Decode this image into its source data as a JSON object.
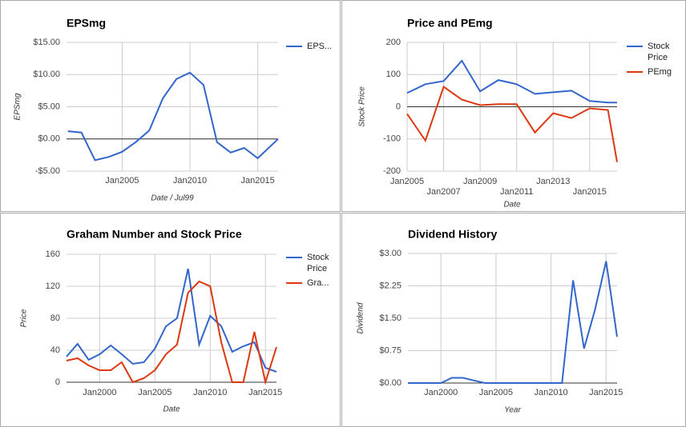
{
  "chart_data": [
    {
      "type": "line",
      "title": "EPSmg",
      "xlabel": "Date / Jul99",
      "ylabel": "EPSmg",
      "x": [
        2001,
        2002,
        2003,
        2004,
        2005,
        2006,
        2007,
        2008,
        2009,
        2010,
        2011,
        2012,
        2013,
        2014,
        2015,
        2016.5
      ],
      "series": [
        {
          "name": "EPS...",
          "color": "#3366cc",
          "values": [
            1.2,
            1.0,
            -3.3,
            -2.8,
            -2.0,
            -0.5,
            1.3,
            6.3,
            9.3,
            10.3,
            8.4,
            -0.5,
            -2.1,
            -1.4,
            -3.0,
            0
          ]
        }
      ],
      "xlim": [
        2000.9,
        2016.5
      ],
      "xticks": [
        {
          "value": 2005,
          "label": "Jan2005"
        },
        {
          "value": 2010,
          "label": "Jan2010"
        },
        {
          "value": 2015,
          "label": "Jan2015"
        }
      ],
      "ylim": [
        -5,
        15
      ],
      "yticks": [
        {
          "value": -5,
          "label": "-$5.00"
        },
        {
          "value": 0,
          "label": "$0.00"
        },
        {
          "value": 5,
          "label": "$5.00"
        },
        {
          "value": 10,
          "label": "$10.00"
        },
        {
          "value": 15,
          "label": "$15.00"
        }
      ],
      "grid": true,
      "legend": "right"
    },
    {
      "type": "line",
      "title": "Price and PEmg",
      "xlabel": "Date",
      "ylabel": "Stock Price",
      "x": [
        2005,
        2006,
        2007,
        2008,
        2009,
        2010,
        2011,
        2012,
        2013,
        2014,
        2015,
        2016,
        2016.5
      ],
      "series": [
        {
          "name": "Stock Price",
          "color": "#3366cc",
          "values": [
            43,
            70,
            80,
            143,
            48,
            83,
            70,
            40,
            45,
            50,
            18,
            13,
            13
          ]
        },
        {
          "name": "PEmg",
          "color": "#dc3912",
          "values": [
            -22,
            -105,
            62,
            22,
            5,
            8,
            8,
            -80,
            -20,
            -35,
            -5,
            -10,
            -172
          ]
        }
      ],
      "xlim": [
        2005,
        2016.5
      ],
      "xticks": [
        {
          "value": 2005,
          "label": "Jan2005"
        },
        {
          "value": 2007,
          "label": "Jan2007"
        },
        {
          "value": 2009,
          "label": "Jan2009"
        },
        {
          "value": 2011,
          "label": "Jan2011"
        },
        {
          "value": 2013,
          "label": "Jan2013"
        },
        {
          "value": 2015,
          "label": "Jan2015"
        }
      ],
      "ylim": [
        -200,
        200
      ],
      "yticks": [
        -200,
        -100,
        0,
        100,
        200
      ],
      "grid": true,
      "legend": "right"
    },
    {
      "type": "line",
      "title": "Graham Number and Stock Price",
      "xlabel": "Date",
      "ylabel": "Price",
      "x": [
        1997,
        1998,
        1999,
        2000,
        2001,
        2002,
        2003,
        2004,
        2005,
        2006,
        2007,
        2008,
        2009,
        2010,
        2011,
        2012,
        2013,
        2014,
        2015,
        2016
      ],
      "series": [
        {
          "name": "Stock Price",
          "color": "#3366cc",
          "values": [
            32,
            48,
            28,
            35,
            46,
            35,
            23,
            25,
            42,
            70,
            80,
            142,
            47,
            83,
            70,
            38,
            45,
            50,
            18,
            13
          ]
        },
        {
          "name": "Gra...",
          "color": "#dc3912",
          "values": [
            27,
            30,
            21,
            15,
            15,
            25,
            0,
            5,
            15,
            35,
            47,
            112,
            126,
            120,
            50,
            0,
            0,
            63,
            0,
            44
          ]
        }
      ],
      "xlim": [
        1997,
        2016
      ],
      "xticks": [
        {
          "value": 2000,
          "label": "Jan2000"
        },
        {
          "value": 2005,
          "label": "Jan2005"
        },
        {
          "value": 2010,
          "label": "Jan2010"
        },
        {
          "value": 2015,
          "label": "Jan2015"
        }
      ],
      "ylim": [
        0,
        160
      ],
      "yticks": [
        0,
        40,
        80,
        120,
        160
      ],
      "grid": true,
      "legend": "right"
    },
    {
      "type": "line",
      "title": "Dividend History",
      "xlabel": "Year",
      "ylabel": "Dividend",
      "x": [
        1997,
        1998,
        1999,
        2000,
        2001,
        2002,
        2003,
        2004,
        2005,
        2006,
        2007,
        2008,
        2009,
        2010,
        2011,
        2012,
        2013,
        2014,
        2015,
        2016
      ],
      "series": [
        {
          "color": "#3366cc",
          "values": [
            0,
            0,
            0,
            0,
            0.12,
            0.12,
            0.06,
            0,
            0,
            0,
            0,
            0,
            0,
            0,
            0,
            2.38,
            0.8,
            1.7,
            2.82,
            1.07
          ]
        }
      ],
      "xlim": [
        1997,
        2016
      ],
      "xticks": [
        {
          "value": 2000,
          "label": "Jan2000"
        },
        {
          "value": 2005,
          "label": "Jan2005"
        },
        {
          "value": 2010,
          "label": "Jan2010"
        },
        {
          "value": 2015,
          "label": "Jan2015"
        }
      ],
      "ylim": [
        0,
        3
      ],
      "yticks": [
        {
          "value": 0,
          "label": "$0.00"
        },
        {
          "value": 0.75,
          "label": "$0.75"
        },
        {
          "value": 1.5,
          "label": "$1.50"
        },
        {
          "value": 2.25,
          "label": "$2.25"
        },
        {
          "value": 3,
          "label": "$3.00"
        }
      ],
      "grid": true
    }
  ]
}
